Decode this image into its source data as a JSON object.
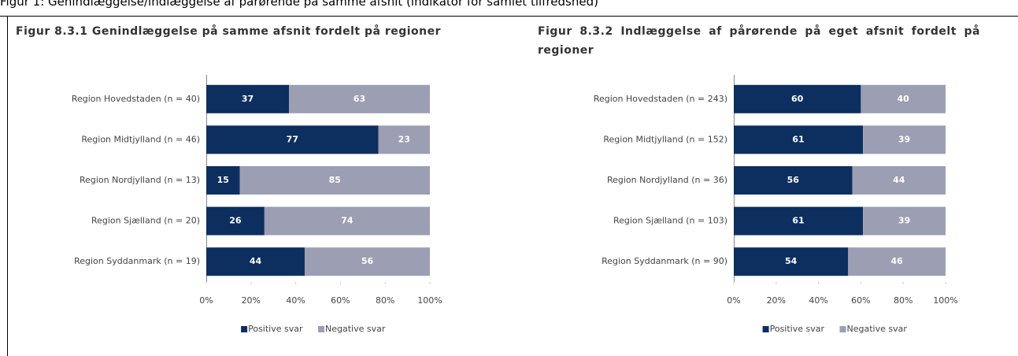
{
  "caption": "Figur 1: Genindlæggelse/indlæggelse af pårørende på samme afsnit (indikator for samlet tilfredshed)",
  "chart_data": [
    {
      "type": "barh_stacked",
      "title": "Figur 8.3.1 Genindlæggelse på samme afsnit fordelt på regioner",
      "categories": [
        "Region Hovedstaden (n = 40)",
        "Region Midtjylland (n = 46)",
        "Region Nordjylland (n = 13)",
        "Region Sjælland (n = 20)",
        "Region Syddanmark (n = 19)"
      ],
      "series": [
        {
          "name": "Positive svar",
          "color": "#0d2f5f",
          "values": [
            37,
            77,
            15,
            26,
            44
          ]
        },
        {
          "name": "Negative svar",
          "color": "#9c9eb3",
          "values": [
            63,
            23,
            85,
            74,
            56
          ]
        }
      ],
      "xlim": [
        0,
        100
      ],
      "xticks": [
        {
          "value": 0,
          "label": "0%"
        },
        {
          "value": 20,
          "label": "20%"
        },
        {
          "value": 40,
          "label": "40%"
        },
        {
          "value": 60,
          "label": "60%"
        },
        {
          "value": 80,
          "label": "80%"
        },
        {
          "value": 100,
          "label": "100%"
        }
      ],
      "legend": "bottom"
    },
    {
      "type": "barh_stacked",
      "title": "Figur 8.3.2 Indlæggelse af pårørende på eget afsnit fordelt på regioner",
      "categories": [
        "Region Hovedstaden (n = 243)",
        "Region Midtjylland (n = 152)",
        "Region Nordjylland (n = 36)",
        "Region Sjælland (n = 103)",
        "Region Syddanmark (n = 90)"
      ],
      "series": [
        {
          "name": "Positive svar",
          "color": "#0d2f5f",
          "values": [
            60,
            61,
            56,
            61,
            54
          ]
        },
        {
          "name": "Negative svar",
          "color": "#9c9eb3",
          "values": [
            40,
            39,
            44,
            39,
            46
          ]
        }
      ],
      "xlim": [
        0,
        100
      ],
      "xticks": [
        {
          "value": 0,
          "label": "0%"
        },
        {
          "value": 20,
          "label": "20%"
        },
        {
          "value": 40,
          "label": "40%"
        },
        {
          "value": 60,
          "label": "60%"
        },
        {
          "value": 80,
          "label": "80%"
        },
        {
          "value": 100,
          "label": "100%"
        }
      ],
      "legend": "bottom"
    }
  ]
}
